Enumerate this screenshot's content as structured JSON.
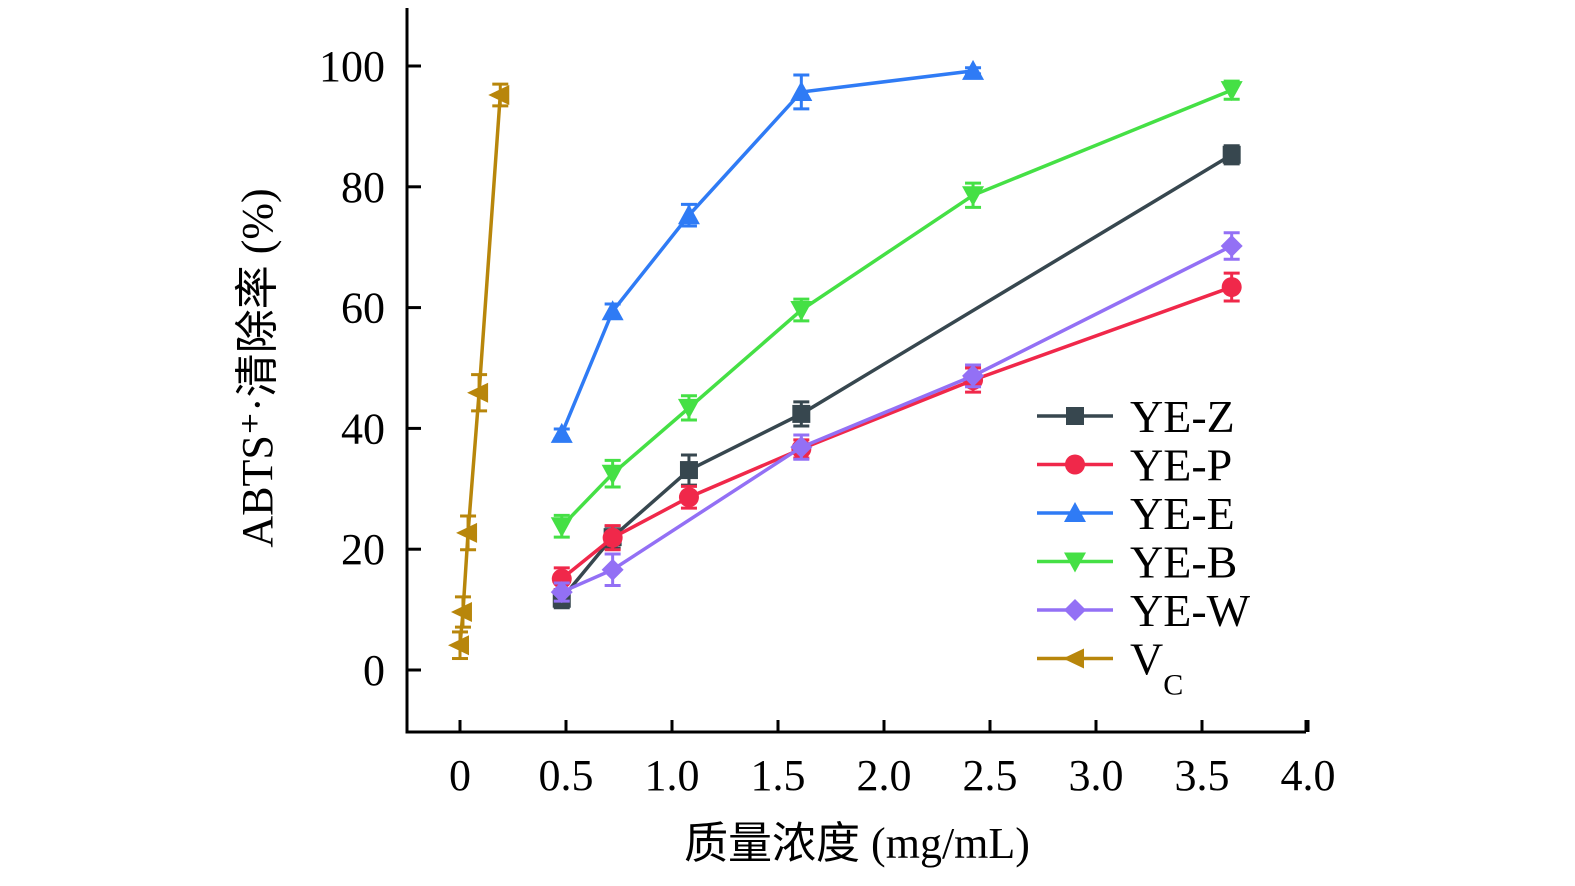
{
  "chart_data": {
    "type": "line",
    "title": "",
    "xlabel": "质量浓度 (mg/mL)",
    "ylabel": "ABTS⁺·清除率 (%)",
    "xlim": [
      -0.4,
      4.0
    ],
    "ylim": [
      -10,
      110
    ],
    "xticks": [
      0,
      0.5,
      1.0,
      1.5,
      2.0,
      2.5,
      3.0,
      3.5,
      4.0
    ],
    "xtick_labels": [
      "0",
      "0.5",
      "1.0",
      "1.5",
      "2.0",
      "2.5",
      "3.0",
      "3.5",
      "4.0"
    ],
    "yticks": [
      0,
      20,
      40,
      60,
      80,
      100
    ],
    "ytick_labels": [
      "0",
      "20",
      "40",
      "60",
      "80",
      "100"
    ],
    "grid": false,
    "legend_position": "bottom-right",
    "error_bars": true,
    "series": [
      {
        "name": "YE-Z",
        "marker": "square",
        "color": "#37474f",
        "x": [
          0.48,
          0.72,
          1.08,
          1.61,
          3.64
        ],
        "y": [
          11.8,
          22.0,
          33.1,
          42.4,
          85.3
        ],
        "err": [
          1.5,
          1.8,
          2.5,
          2.0,
          1.5
        ]
      },
      {
        "name": "YE-P",
        "marker": "circle",
        "color": "#f0284a",
        "x": [
          0.48,
          0.72,
          1.08,
          1.61,
          2.42,
          3.64
        ],
        "y": [
          15.1,
          21.9,
          28.6,
          36.6,
          48.0,
          63.4
        ],
        "err": [
          1.8,
          2.0,
          1.8,
          1.5,
          2.0,
          2.3
        ]
      },
      {
        "name": "YE-E",
        "marker": "triangle-up",
        "color": "#2f7bf5",
        "x": [
          0.48,
          0.72,
          1.08,
          1.61,
          2.42
        ],
        "y": [
          39.1,
          59.4,
          75.3,
          95.7,
          99.2
        ],
        "err": [
          0.8,
          1.2,
          1.8,
          2.8,
          0.5
        ]
      },
      {
        "name": "YE-B",
        "marker": "triangle-down",
        "color": "#45e045",
        "x": [
          0.48,
          0.72,
          1.08,
          1.61,
          2.42,
          3.64
        ],
        "y": [
          23.8,
          32.5,
          43.4,
          59.6,
          78.6,
          96.0
        ],
        "err": [
          1.8,
          2.2,
          2.0,
          1.8,
          2.0,
          1.5
        ]
      },
      {
        "name": "YE-W",
        "marker": "diamond",
        "color": "#9370f5",
        "x": [
          0.48,
          0.72,
          1.61,
          2.42,
          3.64
        ],
        "y": [
          12.9,
          16.6,
          36.9,
          48.7,
          70.2
        ],
        "err": [
          1.5,
          2.6,
          2.0,
          1.8,
          2.2
        ]
      },
      {
        "name": "VC",
        "legend_main": "V",
        "legend_sub": "C",
        "marker": "triangle-left",
        "color": "#b8860b",
        "x": [
          0.0,
          0.014,
          0.038,
          0.09,
          0.19
        ],
        "y": [
          4.1,
          9.6,
          22.7,
          45.9,
          95.2
        ],
        "err": [
          2.2,
          2.5,
          2.8,
          3.0,
          1.8
        ]
      }
    ]
  }
}
